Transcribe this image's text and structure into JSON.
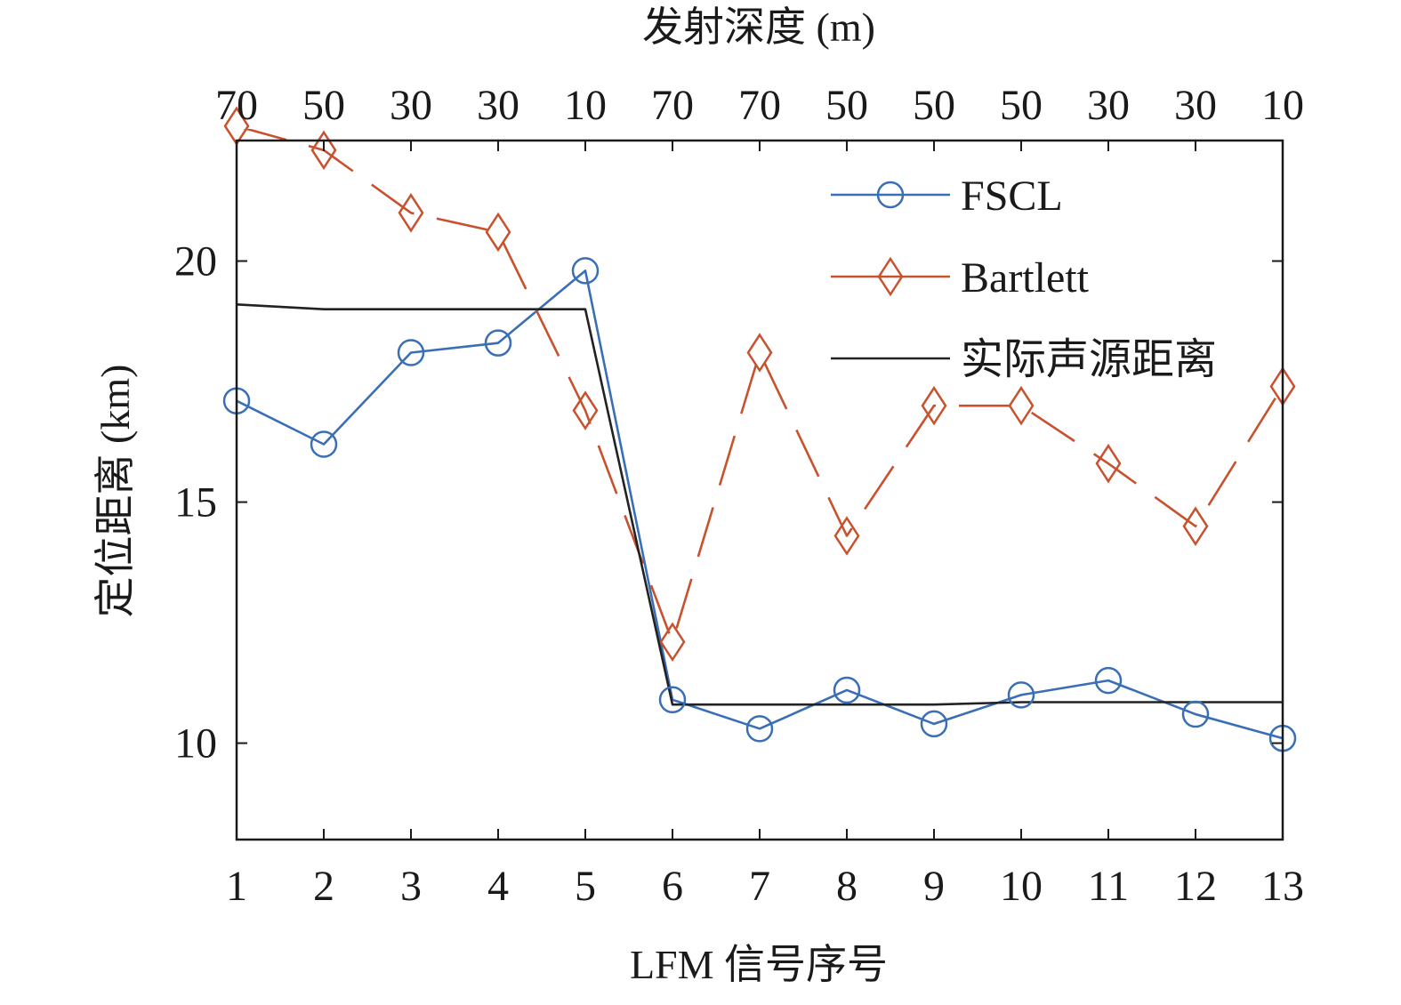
{
  "chart_data": {
    "type": "line",
    "title": "",
    "xlabel": "LFM 信号序号",
    "ylabel": "定位距离 (km)",
    "top_xlabel": "发射深度 (m)",
    "x": [
      1,
      2,
      3,
      4,
      5,
      6,
      7,
      8,
      9,
      10,
      11,
      12,
      13
    ],
    "x_tick_labels": [
      "1",
      "2",
      "3",
      "4",
      "5",
      "6",
      "7",
      "8",
      "9",
      "10",
      "11",
      "12",
      "13"
    ],
    "top_tick_labels": [
      "70",
      "50",
      "30",
      "30",
      "10",
      "70",
      "70",
      "50",
      "50",
      "50",
      "30",
      "30",
      "10"
    ],
    "xlim": [
      1,
      13
    ],
    "ylim": [
      8,
      22.5
    ],
    "y_ticks": [
      10,
      15,
      20
    ],
    "y_tick_labels": [
      "10",
      "15",
      "20"
    ],
    "grid": false,
    "legend_position": "top-right",
    "series": [
      {
        "name": "FSCL",
        "color": "#3a6fb5",
        "line_style": "solid",
        "marker": "circle",
        "values": [
          17.1,
          16.2,
          18.1,
          18.3,
          19.8,
          10.9,
          10.3,
          11.1,
          10.4,
          11.0,
          11.3,
          10.6,
          10.1
        ]
      },
      {
        "name": "Bartlett",
        "color": "#c8512e",
        "line_style": "dashed",
        "marker": "diamond",
        "values": [
          22.8,
          22.3,
          21.0,
          20.6,
          16.9,
          12.1,
          18.1,
          14.3,
          17.0,
          17.0,
          15.8,
          14.5,
          17.4
        ]
      },
      {
        "name": "实际声源距离",
        "color": "#222222",
        "line_style": "solid",
        "marker": "none",
        "values": [
          19.1,
          19.0,
          19.0,
          19.0,
          19.0,
          10.8,
          10.8,
          10.8,
          10.8,
          10.85,
          10.85,
          10.85,
          10.85
        ]
      }
    ]
  }
}
